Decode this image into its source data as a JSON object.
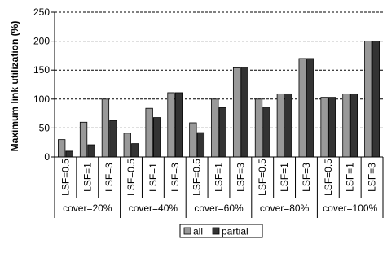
{
  "chart_data": {
    "type": "bar",
    "ylabel": "Maximum link utilization (%)",
    "xlabel": "",
    "title": "",
    "ylim": [
      0,
      250
    ],
    "yticks": [
      0,
      50,
      100,
      150,
      200,
      250
    ],
    "grid": true,
    "legend_position": "bottom",
    "groups": [
      "cover=20%",
      "cover=40%",
      "cover=60%",
      "cover=80%",
      "cover=100%"
    ],
    "categories": [
      "LSF=0.5",
      "LSF=1",
      "LSF=3",
      "LSF=0.5",
      "LSF=1",
      "LSF=3",
      "LSF=0.5",
      "LSF=1",
      "LSF=3",
      "LSF=0.5",
      "LSF=1",
      "LSF=3",
      "LSF=0.5",
      "LSF=1",
      "LSF=3"
    ],
    "series": [
      {
        "name": "all",
        "color": "#999999",
        "values": [
          30,
          60,
          100,
          41,
          84,
          111,
          59,
          100,
          154,
          100,
          109,
          170,
          103,
          109,
          200
        ]
      },
      {
        "name": "partial",
        "color": "#333333",
        "values": [
          10,
          21,
          63,
          23,
          68,
          111,
          42,
          85,
          155,
          86,
          109,
          170,
          103,
          109,
          200
        ]
      }
    ]
  }
}
